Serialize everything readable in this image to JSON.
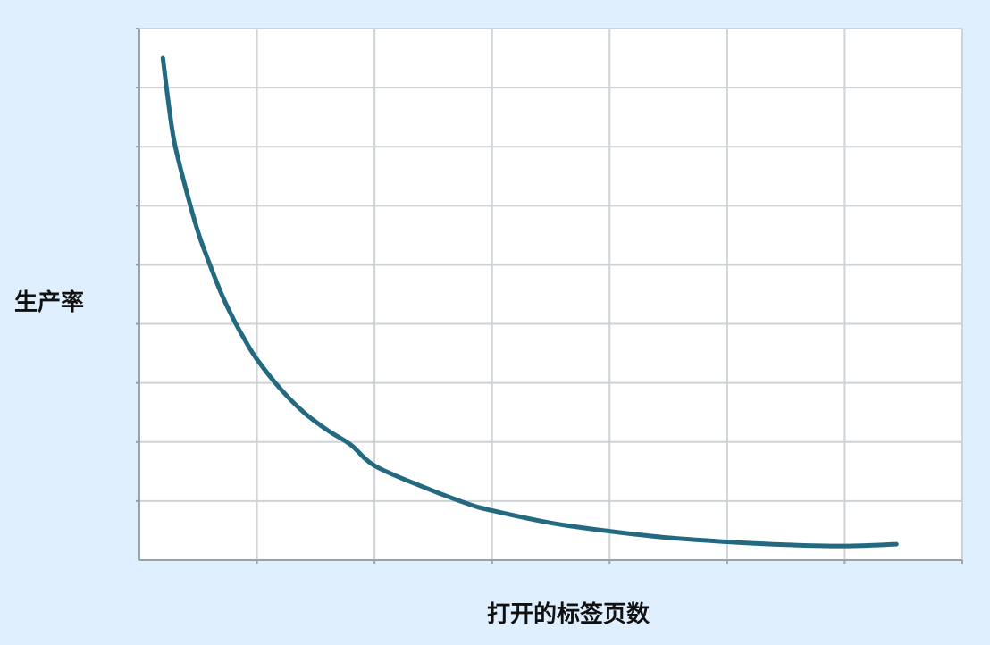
{
  "chart_data": {
    "type": "line",
    "title": "",
    "xlabel": "打开的标签页数",
    "ylabel": "生产率",
    "xlim": [
      0,
      7
    ],
    "ylim": [
      0,
      9
    ],
    "grid": true,
    "x_divisions": 7,
    "y_divisions": 9,
    "series": [
      {
        "color": "#236a80",
        "x": [
          0.2,
          0.25,
          0.3,
          0.4,
          0.5,
          0.6,
          0.7,
          0.8,
          0.9,
          1.0,
          1.2,
          1.4,
          1.6,
          1.8,
          2.0,
          2.4,
          2.8,
          3.0,
          3.5,
          4.0,
          4.5,
          5.0,
          5.5,
          6.0,
          6.44
        ],
        "y": [
          8.5,
          7.7,
          7.05,
          6.25,
          5.55,
          5.0,
          4.5,
          4.08,
          3.72,
          3.4,
          2.9,
          2.5,
          2.2,
          1.95,
          1.6,
          1.25,
          0.95,
          0.84,
          0.63,
          0.49,
          0.38,
          0.31,
          0.26,
          0.24,
          0.27
        ]
      }
    ],
    "colors": {
      "background": "#e0effd",
      "plot_background": "#ffffff",
      "grid": "#cdd3d6",
      "axis": "#9ca3a7",
      "line": "#236a80"
    }
  }
}
